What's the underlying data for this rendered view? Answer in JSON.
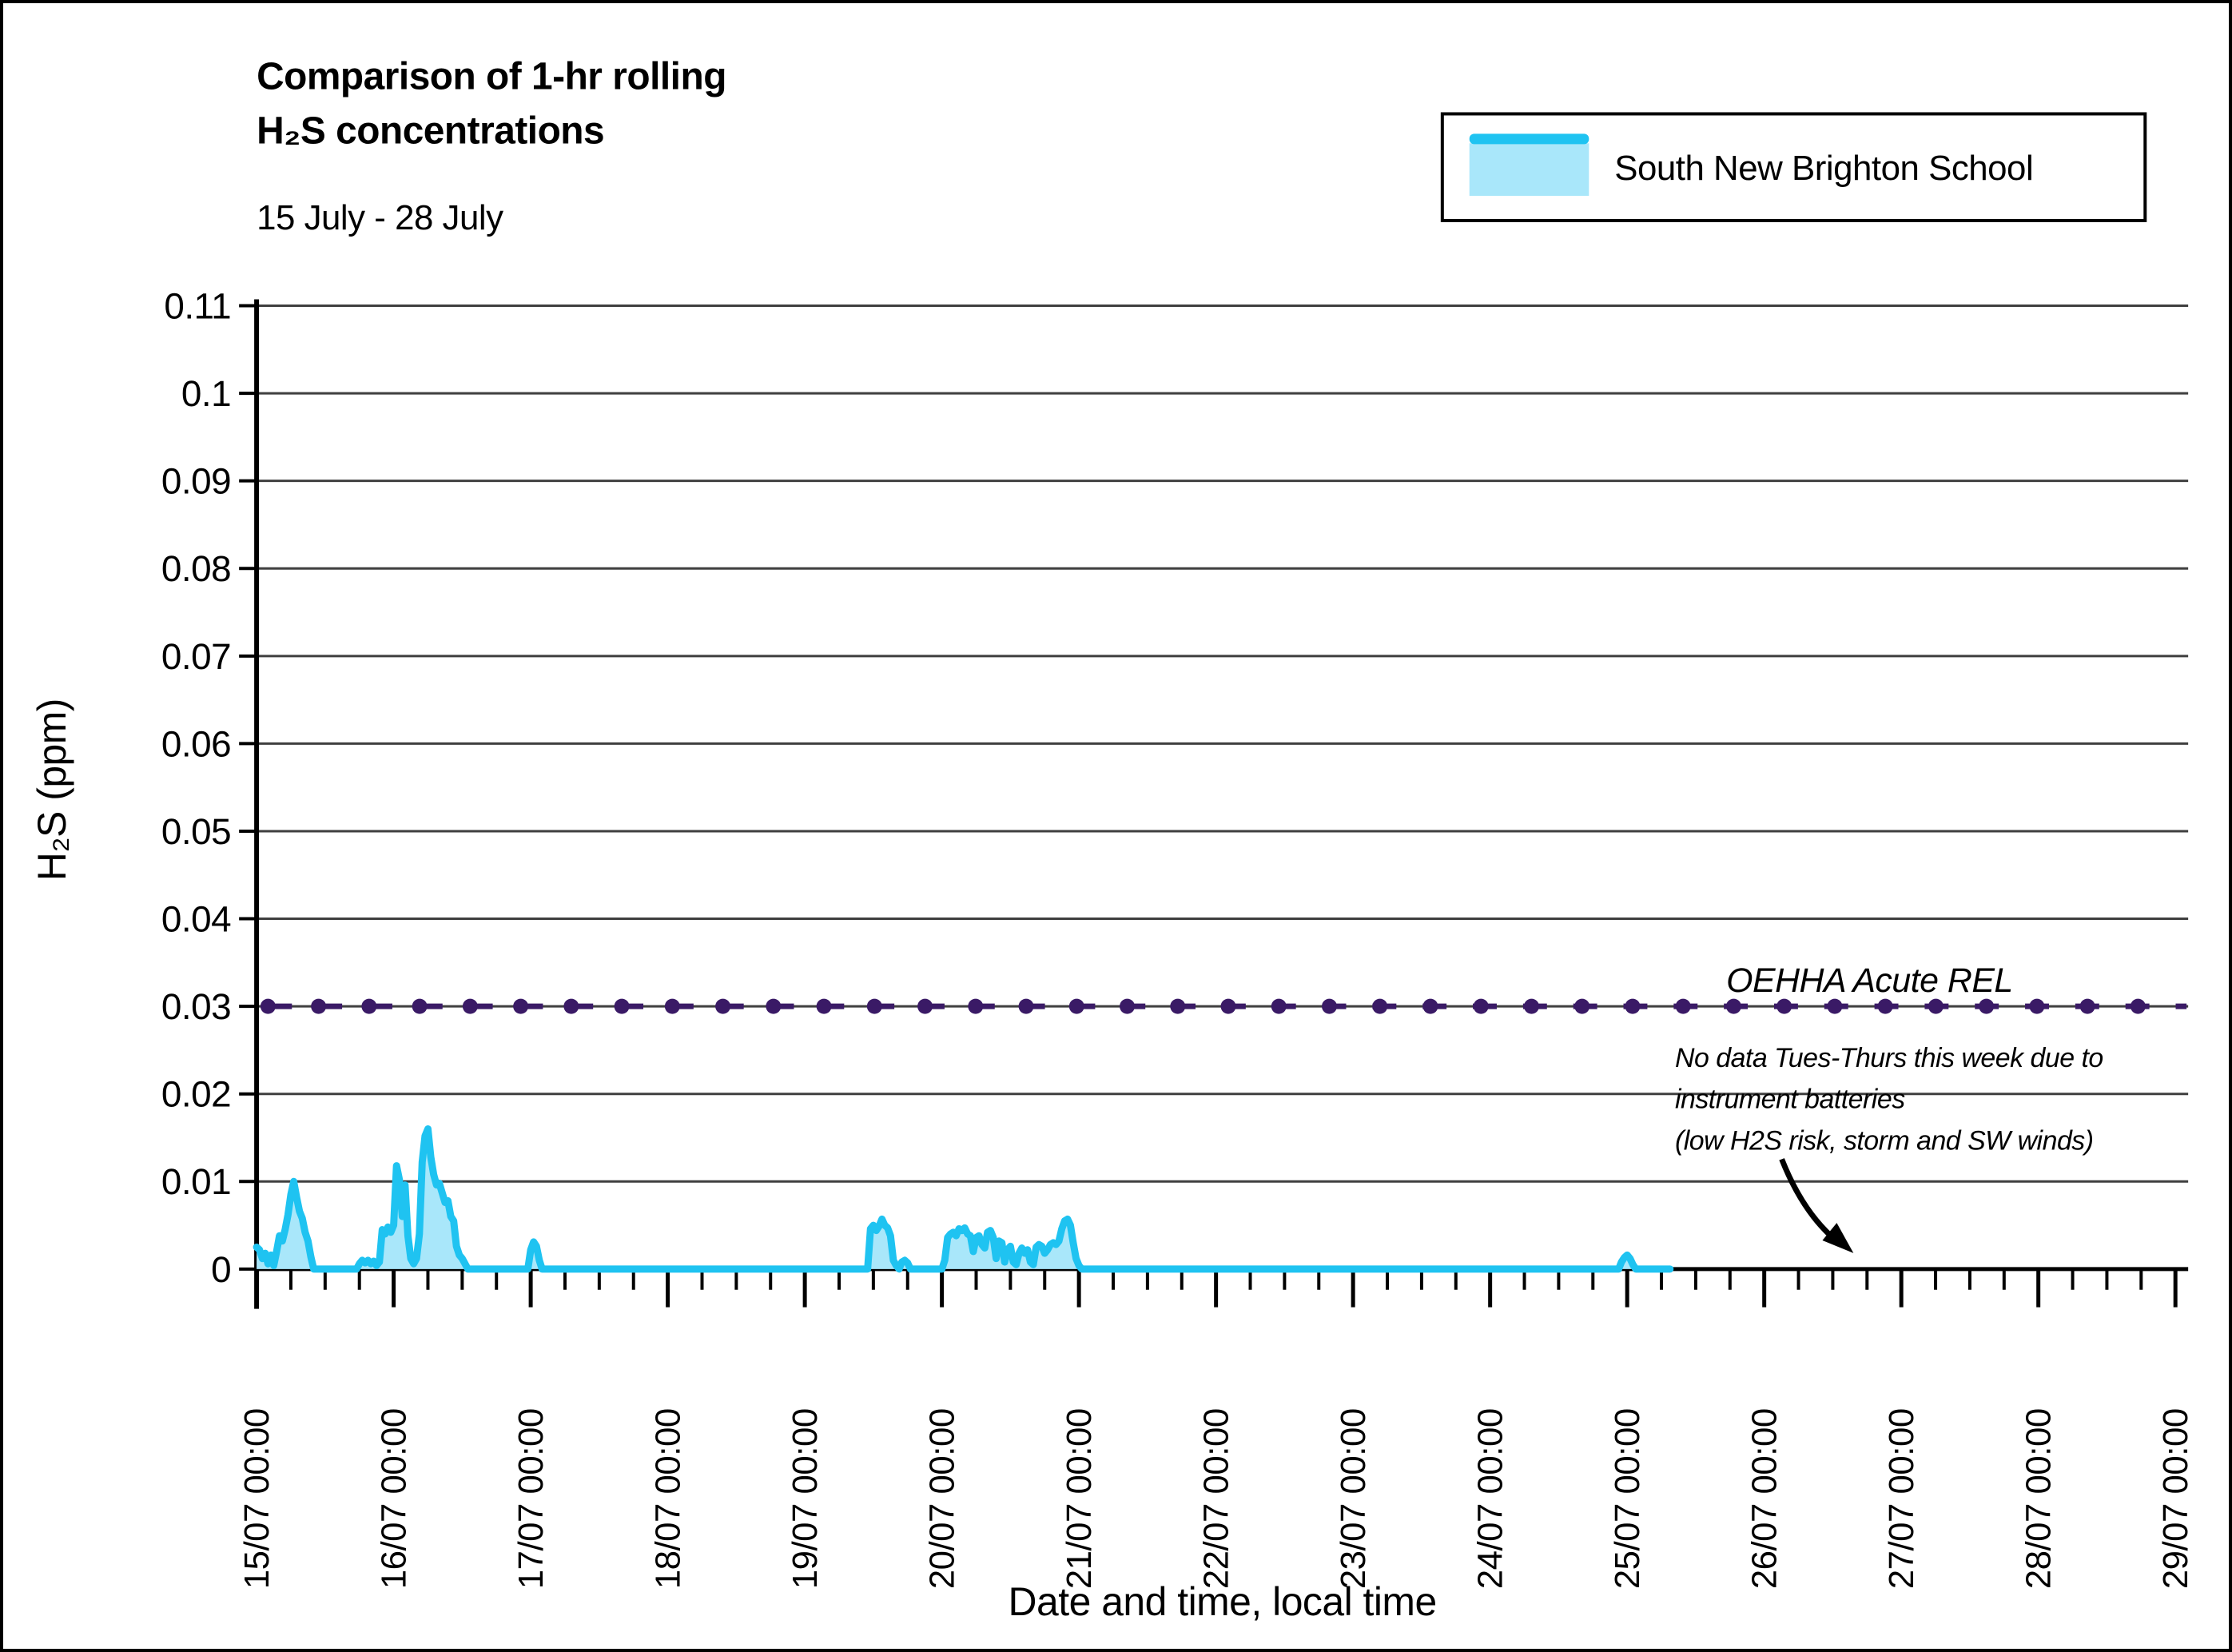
{
  "figure": {
    "title_line1": "Comparison of 1-hr rolling",
    "title_line2": "H₂S concentrations",
    "subtitle": "15 July - 28 July"
  },
  "legend": {
    "series_label": "South New Brighton School",
    "swatch_fill": "#A9E7FA",
    "swatch_line": "#1FC3F1"
  },
  "annotation": {
    "line1": "No data Tues-Thurs this week due to",
    "line2": "instrument batteries",
    "line3": "(low H2S risk, storm and SW winds)"
  },
  "chart_data": {
    "type": "area",
    "title": "Comparison of 1-hr rolling H₂S concentrations, 15 July - 28 July",
    "xlabel": "Date and time, local time",
    "ylabel": "H₂S (ppm)",
    "grid": "horizontal",
    "legend_position": "top-right",
    "x_axis": {
      "unit": "hours since 15/07 00:00",
      "range_hours": [
        0,
        338
      ],
      "major_tick_hours": 24,
      "minor_tick_hours": 6,
      "tick_labels": [
        "15/07 00:00",
        "16/07 00:00",
        "17/07 00:00",
        "18/07 00:00",
        "19/07 00:00",
        "20/07 00:00",
        "21/07 00:00",
        "22/07 00:00",
        "23/07 00:00",
        "24/07 00:00",
        "25/07 00:00",
        "26/07 00:00",
        "27/07 00:00",
        "28/07 00:00",
        "29/07 00:00"
      ]
    },
    "y_axis": {
      "min": 0,
      "max": 0.11,
      "tick_step": 0.01,
      "tick_labels": [
        "0",
        "0.01",
        "0.02",
        "0.03",
        "0.04",
        "0.05",
        "0.06",
        "0.07",
        "0.08",
        "0.09",
        "0.1",
        "0.11"
      ]
    },
    "rel_line": {
      "label": "OEHHA Acute REL",
      "value": 0.03,
      "color": "#3A1A66",
      "style": "dashed-with-round-markers",
      "start_hour": 2,
      "end_hour": 338,
      "marker_interval_hours": 8.85
    },
    "series": [
      {
        "name": "South New Brighton School",
        "line_color": "#1FC3F1",
        "fill_color": "#A9E7FA",
        "data_ends_hour": 247.5,
        "points_hours_ppm": [
          [
            0,
            0.0025
          ],
          [
            0.5,
            0.0022
          ],
          [
            1,
            0.0012
          ],
          [
            1.5,
            0.0018
          ],
          [
            2,
            0.0006
          ],
          [
            2.5,
            0.0016
          ],
          [
            3,
            0.0004
          ],
          [
            3.5,
            0.002
          ],
          [
            4,
            0.0038
          ],
          [
            4.5,
            0.0032
          ],
          [
            5,
            0.0045
          ],
          [
            5.5,
            0.0062
          ],
          [
            6,
            0.0085
          ],
          [
            6.5,
            0.01
          ],
          [
            7,
            0.0082
          ],
          [
            7.5,
            0.0066
          ],
          [
            8,
            0.0058
          ],
          [
            8.5,
            0.0042
          ],
          [
            9,
            0.0032
          ],
          [
            9.5,
            0.0014
          ],
          [
            10,
            0
          ],
          [
            17.5,
            0
          ],
          [
            18,
            0.0006
          ],
          [
            18.5,
            0.001
          ],
          [
            19,
            0.0007
          ],
          [
            19.5,
            0.001
          ],
          [
            20,
            0.0006
          ],
          [
            20.5,
            0.0009
          ],
          [
            21,
            0.0004
          ],
          [
            21.5,
            0.0008
          ],
          [
            22,
            0.0045
          ],
          [
            22.5,
            0.004
          ],
          [
            23,
            0.0048
          ],
          [
            23.5,
            0.0042
          ],
          [
            24,
            0.005
          ],
          [
            24.5,
            0.0118
          ],
          [
            25,
            0.0102
          ],
          [
            25.5,
            0.006
          ],
          [
            26,
            0.0096
          ],
          [
            26.5,
            0.0038
          ],
          [
            27,
            0.0012
          ],
          [
            27.5,
            0.0006
          ],
          [
            28,
            0.0012
          ],
          [
            28.5,
            0.004
          ],
          [
            29,
            0.0122
          ],
          [
            29.5,
            0.0152
          ],
          [
            30,
            0.016
          ],
          [
            30.5,
            0.0128
          ],
          [
            31,
            0.0108
          ],
          [
            31.5,
            0.0096
          ],
          [
            32,
            0.0098
          ],
          [
            33,
            0.0076
          ],
          [
            33.5,
            0.0078
          ],
          [
            34,
            0.006
          ],
          [
            34.5,
            0.0055
          ],
          [
            35,
            0.0026
          ],
          [
            35.5,
            0.0016
          ],
          [
            36,
            0.0012
          ],
          [
            36.5,
            0.0006
          ],
          [
            37,
            0
          ],
          [
            47.5,
            0
          ],
          [
            48,
            0.0022
          ],
          [
            48.5,
            0.0031
          ],
          [
            49,
            0.0026
          ],
          [
            49.5,
            0.001
          ],
          [
            50,
            0
          ],
          [
            107,
            0
          ],
          [
            107.5,
            0.0046
          ],
          [
            108,
            0.005
          ],
          [
            108.5,
            0.0044
          ],
          [
            109,
            0.0049
          ],
          [
            109.5,
            0.0057
          ],
          [
            110,
            0.005
          ],
          [
            110.5,
            0.0047
          ],
          [
            111,
            0.0038
          ],
          [
            111.5,
            0.001
          ],
          [
            112,
            0.0004
          ],
          [
            112.5,
            0
          ],
          [
            113,
            0.0008
          ],
          [
            113.5,
            0.001
          ],
          [
            114,
            0.0007
          ],
          [
            114.5,
            0
          ],
          [
            120,
            0
          ],
          [
            120.5,
            0.001
          ],
          [
            121,
            0.0036
          ],
          [
            121.5,
            0.004
          ],
          [
            122,
            0.0042
          ],
          [
            122.5,
            0.0038
          ],
          [
            123,
            0.0046
          ],
          [
            123.5,
            0.0044
          ],
          [
            124,
            0.0047
          ],
          [
            124.5,
            0.004
          ],
          [
            125,
            0.0038
          ],
          [
            125.5,
            0.002
          ],
          [
            126,
            0.0036
          ],
          [
            126.5,
            0.0038
          ],
          [
            127,
            0.0028
          ],
          [
            127.5,
            0.0024
          ],
          [
            128,
            0.0042
          ],
          [
            128.5,
            0.0044
          ],
          [
            129,
            0.0036
          ],
          [
            129.5,
            0.0012
          ],
          [
            130,
            0.0032
          ],
          [
            130.5,
            0.003
          ],
          [
            131,
            0.0008
          ],
          [
            131.5,
            0.0022
          ],
          [
            132,
            0.0026
          ],
          [
            132.5,
            0.0008
          ],
          [
            133,
            0.0005
          ],
          [
            133.5,
            0.0018
          ],
          [
            134,
            0.0024
          ],
          [
            134.5,
            0.0018
          ],
          [
            135,
            0.0022
          ],
          [
            135.5,
            0.0008
          ],
          [
            136,
            0.0005
          ],
          [
            136.5,
            0.0025
          ],
          [
            137,
            0.0028
          ],
          [
            137.5,
            0.0026
          ],
          [
            138,
            0.0018
          ],
          [
            138.5,
            0.0022
          ],
          [
            139,
            0.0028
          ],
          [
            139.5,
            0.003
          ],
          [
            140,
            0.0028
          ],
          [
            140.5,
            0.0032
          ],
          [
            141,
            0.0046
          ],
          [
            141.5,
            0.0055
          ],
          [
            142,
            0.0057
          ],
          [
            142.5,
            0.005
          ],
          [
            143,
            0.003
          ],
          [
            143.5,
            0.0012
          ],
          [
            144,
            0.0004
          ],
          [
            144.5,
            0
          ],
          [
            238.5,
            0
          ],
          [
            239,
            0.0008
          ],
          [
            239.5,
            0.0013
          ],
          [
            240,
            0.0016
          ],
          [
            240.5,
            0.0012
          ],
          [
            241,
            0.0005
          ],
          [
            241.5,
            0
          ],
          [
            247.5,
            0
          ]
        ]
      }
    ]
  }
}
